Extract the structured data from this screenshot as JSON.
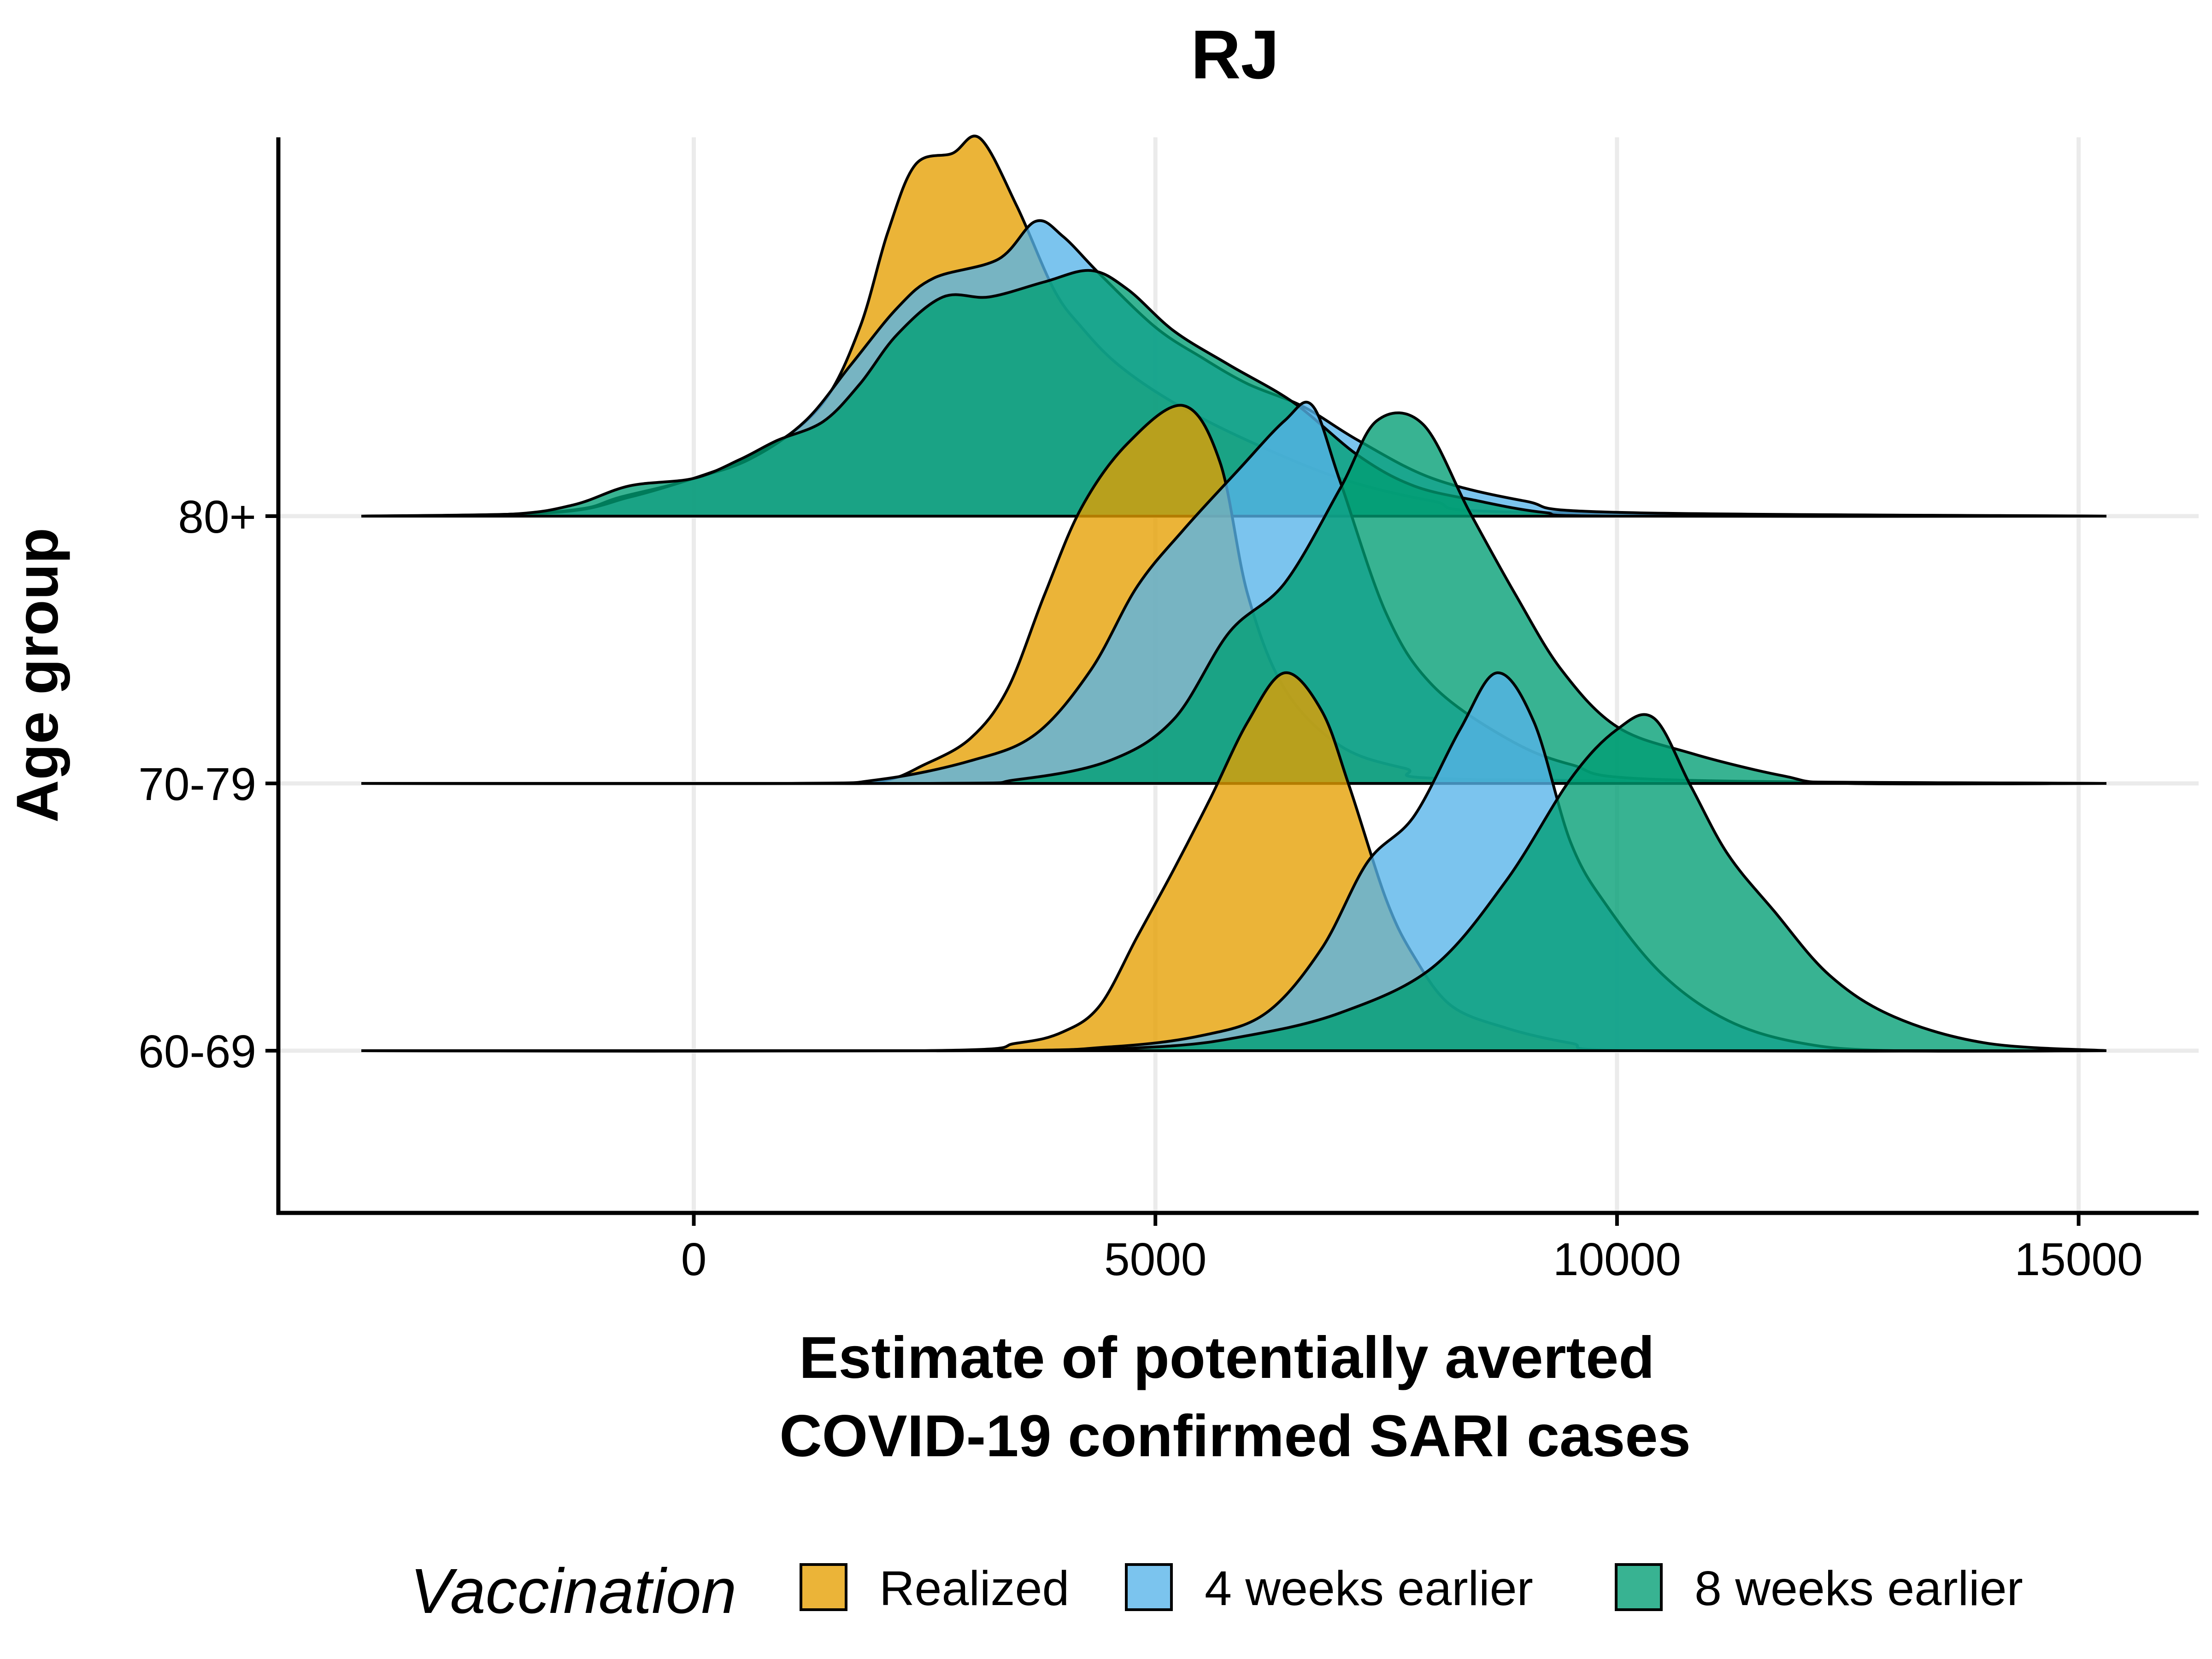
{
  "chart_data": {
    "type": "ridgeline",
    "title": "RJ",
    "xlabel": "Estimate of potentially averted COVID-19 confirmed SARI cases",
    "xlabel_lines": [
      "Estimate of potentially averted",
      "COVID-19 confirmed SARI cases"
    ],
    "ylabel": "Age group",
    "xlim": [
      -4500,
      16300
    ],
    "x_ticks": [
      0,
      5000,
      10000,
      15000
    ],
    "x_tick_labels": [
      "0",
      "5000",
      "10000",
      "15000"
    ],
    "x_range": [
      -3600,
      15300
    ],
    "grid": true,
    "categories": [
      "60-69",
      "70-79",
      "80+"
    ],
    "legend": {
      "title": "Vaccination",
      "position": "bottom",
      "entries": [
        "Realized",
        "4 weeks earlier",
        "8 weeks earlier"
      ]
    },
    "colors": {
      "Realized": "#E69F00",
      "4 weeks earlier": "#56B4E9",
      "8 weeks earlier": "#009E73"
    },
    "series": [
      {
        "name": "Realized",
        "groups": {
          "80+": [
            [
              -3600,
              0
            ],
            [
              -2000,
              0.005
            ],
            [
              -1200,
              0.02
            ],
            [
              -800,
              0.05
            ],
            [
              0,
              0.1
            ],
            [
              800,
              0.18
            ],
            [
              1400,
              0.3
            ],
            [
              1800,
              0.5
            ],
            [
              2100,
              0.75
            ],
            [
              2400,
              0.93
            ],
            [
              2800,
              0.96
            ],
            [
              3100,
              1.0
            ],
            [
              3500,
              0.82
            ],
            [
              3900,
              0.6
            ],
            [
              4200,
              0.5
            ],
            [
              4600,
              0.4
            ],
            [
              5200,
              0.3
            ],
            [
              6000,
              0.2
            ],
            [
              7000,
              0.1
            ],
            [
              8000,
              0.04
            ],
            [
              9000,
              0.01
            ],
            [
              15300,
              0
            ]
          ],
          "70-79": [
            [
              -3600,
              0
            ],
            [
              1000,
              0
            ],
            [
              2000,
              0.005
            ],
            [
              2500,
              0.05
            ],
            [
              3000,
              0.12
            ],
            [
              3400,
              0.25
            ],
            [
              3800,
              0.5
            ],
            [
              4200,
              0.73
            ],
            [
              4700,
              0.9
            ],
            [
              5300,
              1.0
            ],
            [
              5700,
              0.85
            ],
            [
              6000,
              0.5
            ],
            [
              6400,
              0.25
            ],
            [
              7000,
              0.1
            ],
            [
              7700,
              0.04
            ],
            [
              8500,
              0.01
            ],
            [
              15300,
              0
            ]
          ],
          "60-69": [
            [
              -3600,
              0
            ],
            [
              2500,
              0
            ],
            [
              3500,
              0.02
            ],
            [
              4000,
              0.05
            ],
            [
              4400,
              0.12
            ],
            [
              4800,
              0.3
            ],
            [
              5200,
              0.48
            ],
            [
              5600,
              0.67
            ],
            [
              6000,
              0.87
            ],
            [
              6400,
              1.0
            ],
            [
              6800,
              0.9
            ],
            [
              7100,
              0.7
            ],
            [
              7500,
              0.4
            ],
            [
              7800,
              0.25
            ],
            [
              8200,
              0.12
            ],
            [
              8800,
              0.06
            ],
            [
              9500,
              0.02
            ],
            [
              10200,
              0
            ],
            [
              15300,
              0
            ]
          ]
        }
      },
      {
        "name": "4 weeks earlier",
        "groups": {
          "80+": [
            [
              -3600,
              0
            ],
            [
              -1500,
              0.01
            ],
            [
              -700,
              0.05
            ],
            [
              0,
              0.1
            ],
            [
              600,
              0.15
            ],
            [
              1200,
              0.25
            ],
            [
              1700,
              0.4
            ],
            [
              2200,
              0.55
            ],
            [
              2600,
              0.63
            ],
            [
              3300,
              0.68
            ],
            [
              3700,
              0.78
            ],
            [
              4000,
              0.74
            ],
            [
              4400,
              0.64
            ],
            [
              5000,
              0.5
            ],
            [
              5500,
              0.42
            ],
            [
              6000,
              0.35
            ],
            [
              6600,
              0.29
            ],
            [
              7200,
              0.2
            ],
            [
              8000,
              0.1
            ],
            [
              9000,
              0.04
            ],
            [
              10000,
              0.01
            ],
            [
              15300,
              0
            ]
          ],
          "70-79": [
            [
              -3600,
              0
            ],
            [
              1000,
              0
            ],
            [
              2000,
              0.01
            ],
            [
              3000,
              0.06
            ],
            [
              3700,
              0.13
            ],
            [
              4300,
              0.3
            ],
            [
              4800,
              0.52
            ],
            [
              5300,
              0.67
            ],
            [
              5900,
              0.83
            ],
            [
              6400,
              0.96
            ],
            [
              6700,
              1.0
            ],
            [
              7000,
              0.8
            ],
            [
              7500,
              0.45
            ],
            [
              8000,
              0.26
            ],
            [
              8800,
              0.12
            ],
            [
              9500,
              0.05
            ],
            [
              10500,
              0.01
            ],
            [
              15300,
              0
            ]
          ],
          "60-69": [
            [
              -3600,
              0
            ],
            [
              3000,
              0
            ],
            [
              4500,
              0.01
            ],
            [
              5500,
              0.04
            ],
            [
              6200,
              0.1
            ],
            [
              6800,
              0.27
            ],
            [
              7300,
              0.5
            ],
            [
              7800,
              0.62
            ],
            [
              8300,
              0.85
            ],
            [
              8700,
              1.0
            ],
            [
              9100,
              0.87
            ],
            [
              9500,
              0.55
            ],
            [
              9900,
              0.38
            ],
            [
              10500,
              0.2
            ],
            [
              11200,
              0.08
            ],
            [
              12000,
              0.02
            ],
            [
              13000,
              0
            ],
            [
              15300,
              0
            ]
          ]
        }
      },
      {
        "name": "8 weeks earlier",
        "groups": {
          "80+": [
            [
              -3600,
              0
            ],
            [
              -2000,
              0.005
            ],
            [
              -1300,
              0.03
            ],
            [
              -700,
              0.08
            ],
            [
              0,
              0.1
            ],
            [
              500,
              0.15
            ],
            [
              900,
              0.2
            ],
            [
              1400,
              0.25
            ],
            [
              1800,
              0.35
            ],
            [
              2200,
              0.48
            ],
            [
              2700,
              0.58
            ],
            [
              3200,
              0.58
            ],
            [
              3800,
              0.62
            ],
            [
              4300,
              0.65
            ],
            [
              4700,
              0.6
            ],
            [
              5200,
              0.49
            ],
            [
              5800,
              0.4
            ],
            [
              6500,
              0.3
            ],
            [
              7200,
              0.16
            ],
            [
              7800,
              0.08
            ],
            [
              8500,
              0.04
            ],
            [
              9200,
              0.01
            ],
            [
              10000,
              0
            ],
            [
              15300,
              0
            ]
          ],
          "70-79": [
            [
              -3600,
              0
            ],
            [
              2500,
              0
            ],
            [
              3500,
              0.01
            ],
            [
              4500,
              0.06
            ],
            [
              5200,
              0.17
            ],
            [
              5800,
              0.4
            ],
            [
              6400,
              0.53
            ],
            [
              7000,
              0.78
            ],
            [
              7400,
              0.96
            ],
            [
              7900,
              0.95
            ],
            [
              8400,
              0.72
            ],
            [
              8900,
              0.5
            ],
            [
              9400,
              0.3
            ],
            [
              10000,
              0.15
            ],
            [
              10800,
              0.08
            ],
            [
              11800,
              0.02
            ],
            [
              12500,
              0
            ],
            [
              15300,
              0
            ]
          ],
          "60-69": [
            [
              -3600,
              0
            ],
            [
              3000,
              0
            ],
            [
              5000,
              0.01
            ],
            [
              6000,
              0.04
            ],
            [
              7000,
              0.1
            ],
            [
              8000,
              0.22
            ],
            [
              8800,
              0.45
            ],
            [
              9500,
              0.72
            ],
            [
              10000,
              0.85
            ],
            [
              10400,
              0.88
            ],
            [
              10800,
              0.7
            ],
            [
              11200,
              0.52
            ],
            [
              11700,
              0.37
            ],
            [
              12300,
              0.2
            ],
            [
              13000,
              0.09
            ],
            [
              14000,
              0.02
            ],
            [
              15300,
              0
            ]
          ]
        }
      }
    ]
  }
}
